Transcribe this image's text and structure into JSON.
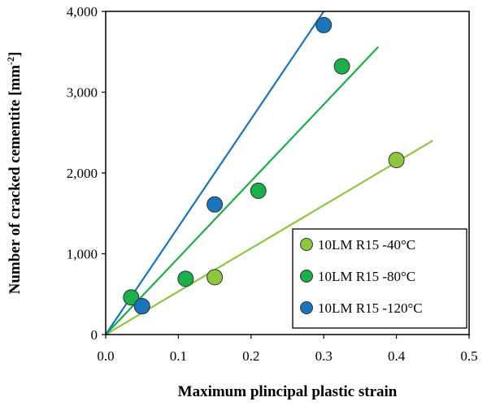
{
  "chart_data": {
    "type": "scatter",
    "xlabel": "Maximum plincipal plastic strain",
    "ylabel": "Number of cracked cementite [mm",
    "ylabel_sup": "-2",
    "ylabel_close": "]",
    "xlim": [
      0,
      0.5
    ],
    "ylim": [
      0,
      4000
    ],
    "x_ticks": [
      0.0,
      0.1,
      0.2,
      0.3,
      0.4,
      0.5
    ],
    "x_tick_labels": [
      "0.0",
      "0.1",
      "0.2",
      "0.3",
      "0.4",
      "0.5"
    ],
    "y_ticks": [
      0,
      1000,
      2000,
      3000,
      4000
    ],
    "y_tick_labels": [
      "0",
      "1,000",
      "2,000",
      "3,000",
      "4,000"
    ],
    "grid": false,
    "legend_position": "bottom-right",
    "series": [
      {
        "name": "10LM R15 -40°C",
        "color": "#8DC63F",
        "points": [
          [
            0.05,
            350
          ],
          [
            0.15,
            710
          ],
          [
            0.4,
            2160
          ]
        ],
        "trendline": [
          [
            0,
            0
          ],
          [
            0.45,
            2400
          ]
        ]
      },
      {
        "name": "10LM R15 -80°C",
        "color": "#1AAF4B",
        "points": [
          [
            0.035,
            460
          ],
          [
            0.11,
            690
          ],
          [
            0.21,
            1780
          ],
          [
            0.325,
            3320
          ]
        ],
        "trendline": [
          [
            0,
            0
          ],
          [
            0.375,
            3560
          ]
        ]
      },
      {
        "name": "10LM R15 -120°C",
        "color": "#1B75BC",
        "points": [
          [
            0.05,
            350
          ],
          [
            0.15,
            1610
          ],
          [
            0.3,
            3830
          ]
        ],
        "trendline": [
          [
            0,
            0
          ],
          [
            0.3,
            4000
          ]
        ]
      }
    ]
  }
}
